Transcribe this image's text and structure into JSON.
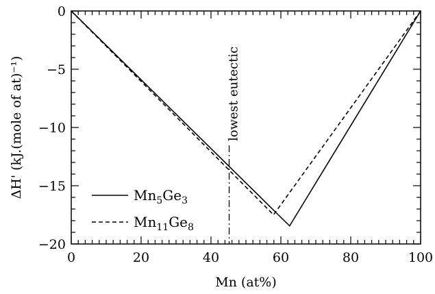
{
  "chart_data": {
    "type": "line",
    "xlabel": "Mn (at%)",
    "ylabel": "ΔH' (kJ.(mole of at)⁻¹)",
    "xlim": [
      0,
      100
    ],
    "ylim": [
      -20,
      0
    ],
    "x_ticks": [
      0,
      20,
      40,
      60,
      80,
      100
    ],
    "y_ticks": [
      0,
      -5,
      -10,
      -15,
      -20
    ],
    "x_tick_labels": [
      "0",
      "20",
      "40",
      "60",
      "80",
      "100"
    ],
    "y_tick_labels": [
      "0",
      "−5",
      "−10",
      "−15",
      "−20"
    ],
    "grid": false,
    "legend_position": "bottom-left",
    "series": [
      {
        "name": "Mn5Ge3",
        "name_base": [
          "Mn",
          "Ge"
        ],
        "name_subscripts": [
          "5",
          "3"
        ],
        "style": "solid",
        "color": "#000000",
        "x": [
          0,
          62.5,
          100
        ],
        "y": [
          0,
          -18.45,
          0
        ]
      },
      {
        "name": "Mn11Ge8",
        "name_base": [
          "Mn",
          "Ge"
        ],
        "name_subscripts": [
          "11",
          "8"
        ],
        "style": "dashed",
        "color": "#000000",
        "x": [
          0,
          57.9,
          100
        ],
        "y": [
          0,
          -17.5,
          0
        ]
      }
    ],
    "annotations": [
      {
        "text": "lowest eutectic",
        "x": 45.2,
        "style": "dashdot",
        "orientation": "vertical"
      }
    ]
  }
}
